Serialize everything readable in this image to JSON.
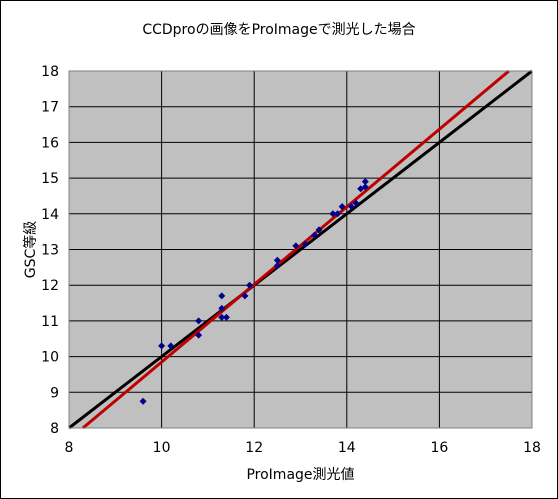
{
  "chart_data": {
    "type": "scatter",
    "title": "CCDproの画像をProImageで測光した場合",
    "xlabel": "ProImage測光値",
    "ylabel": "GSC等級",
    "xlim": [
      8,
      18
    ],
    "ylim": [
      8,
      18
    ],
    "xticks": [
      "8",
      "10",
      "12",
      "14",
      "16",
      "18"
    ],
    "yticks": [
      "8",
      "9",
      "10",
      "11",
      "12",
      "13",
      "14",
      "15",
      "16",
      "17",
      "18"
    ],
    "grid": true,
    "legend": "none",
    "series": [
      {
        "type": "scatter",
        "color": "#00008b",
        "marker": "diamond",
        "points": [
          [
            9.6,
            8.75
          ],
          [
            10.0,
            10.3
          ],
          [
            10.2,
            10.3
          ],
          [
            10.8,
            11.0
          ],
          [
            10.8,
            10.6
          ],
          [
            11.3,
            11.7
          ],
          [
            11.3,
            11.35
          ],
          [
            11.3,
            11.1
          ],
          [
            11.4,
            11.1
          ],
          [
            11.8,
            11.7
          ],
          [
            11.9,
            12.0
          ],
          [
            12.5,
            12.55
          ],
          [
            12.5,
            12.7
          ],
          [
            12.9,
            13.1
          ],
          [
            13.1,
            13.15
          ],
          [
            13.3,
            13.4
          ],
          [
            13.4,
            13.55
          ],
          [
            13.7,
            14.0
          ],
          [
            13.8,
            14.0
          ],
          [
            13.9,
            14.2
          ],
          [
            14.1,
            14.2
          ],
          [
            14.2,
            14.3
          ],
          [
            14.3,
            14.7
          ],
          [
            14.4,
            14.9
          ],
          [
            14.4,
            14.75
          ]
        ]
      },
      {
        "type": "line",
        "color": "#000000",
        "points": [
          [
            8.0,
            8.0
          ],
          [
            18.0,
            18.0
          ]
        ]
      },
      {
        "type": "line",
        "color": "#c00000",
        "points": [
          [
            8.3,
            8.0
          ],
          [
            17.5,
            18.0
          ]
        ]
      }
    ]
  }
}
